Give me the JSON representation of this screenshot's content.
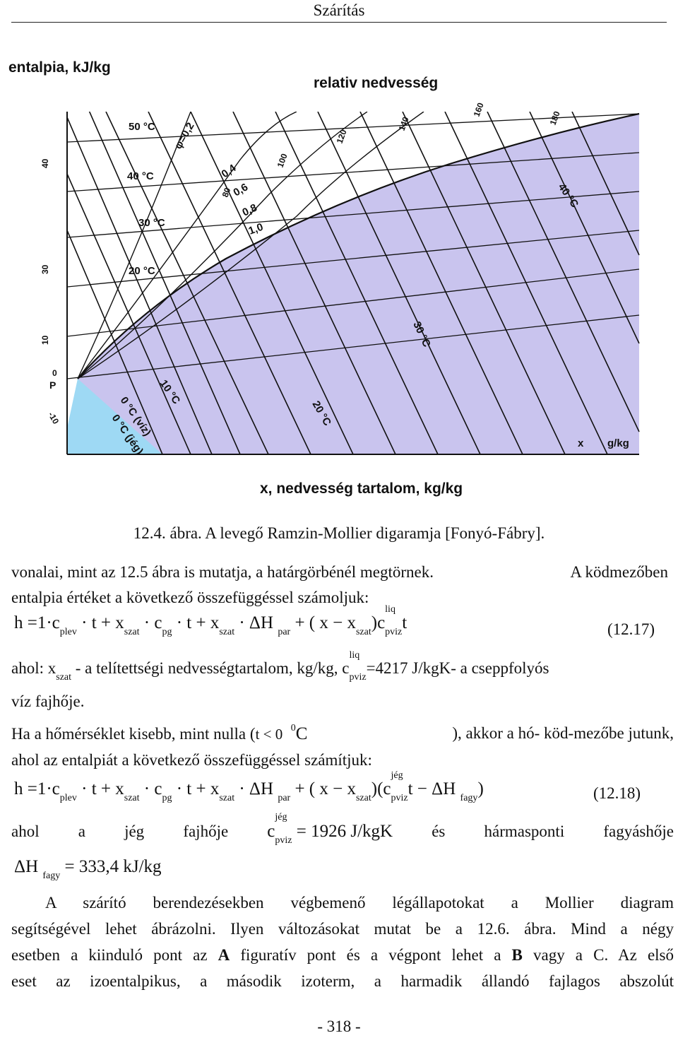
{
  "header": {
    "title": "Szárítás"
  },
  "figure": {
    "y_label": "entalpia, kJ/kg",
    "top_label": "relativ nedvesség",
    "x_label": "x, nedvesség tartalom, kg/kg",
    "chart_labels": {
      "t50": "50 °C",
      "t40": "40 °C",
      "t30": "30 °C",
      "t20": "20 °C",
      "t10": "10 °C",
      "t0viz": "0 °C (víz)",
      "t0jeg": "0 °C (jég)",
      "t40r": "40 °C",
      "t30r": "30 °C",
      "t20r": "20 °C",
      "phi02": "φ=0,2",
      "phi04": "0,4",
      "phi06": "0,6",
      "phi08": "0,8",
      "phi10": "1,0",
      "h40": "40",
      "h30": "30",
      "h10": "10",
      "hm10": "-10",
      "h0": "0",
      "P": "P",
      "h80": "80",
      "h100": "100",
      "h120": "120",
      "h140": "140",
      "h160": "160",
      "h180": "180",
      "x": "x",
      "gkg": "g/kg"
    }
  },
  "caption": "12.4. ábra. A levegő Ramzin-Mollier digaramja [Fonyó-Fábry].",
  "text": {
    "line1a": "vonalai, mint az 12.5 ábra is mutatja, a határgörbénél megtörnek.",
    "line1b": "A ködmezőben",
    "line2": "entalpia értéket a következő összefüggéssel számoljuk:",
    "eq1_num": "(12.17)",
    "ahol1_a": "ahol: x",
    "ahol1_sub": "szat",
    "ahol1_b": "- a telítettségi nedvességtartalom, kg/kg,  c",
    "ahol1_sup": "liq",
    "ahol1_sub2": "pviz",
    "ahol1_c": "=4217 J/kgK- a cseppfolyós",
    "viz": "víz fajhője.",
    "ha_a": "Ha a hőmérséklet kisebb, mint nulla (",
    "ha_t": "t < 0",
    "ha_deg": "0",
    "ha_C": "C",
    "ha_b": "), akkor a hó- köd-mezőbe jutunk,",
    "ahol_az": "ahol az entalpiát a következő összefüggéssel számítjuk:",
    "eq2_num": "(12.18)",
    "jeg_words": [
      "ahol",
      "a",
      "jég",
      "fajhője"
    ],
    "jeg_c": "c",
    "jeg_sup": "jég",
    "jeg_sub": "pviz",
    "jeg_val": "= 1926  J/kgK",
    "jeg_words2": [
      "és",
      "hármasponti",
      "fagyáshője"
    ],
    "dh_val": "= 333,4    kJ/kg",
    "p1": "A szárító berendezésekben végbemenő légállapotokat a Mollier diagram",
    "p2": "segítségével lehet ábrázolni. Ilyen változásokat mutat be a 12.6. ábra. Mind a négy",
    "p3a": "esetben a kiinduló pont az ",
    "p3A": "A",
    "p3b": " figuratív pont és a végpont lehet a ",
    "p3B": "B",
    "p3c": " vagy a C. Az első",
    "p4": "eset az izoentalpikus, a második izoterm, a harmadik állandó fajlagos abszolút"
  },
  "page_number": "- 318 -"
}
